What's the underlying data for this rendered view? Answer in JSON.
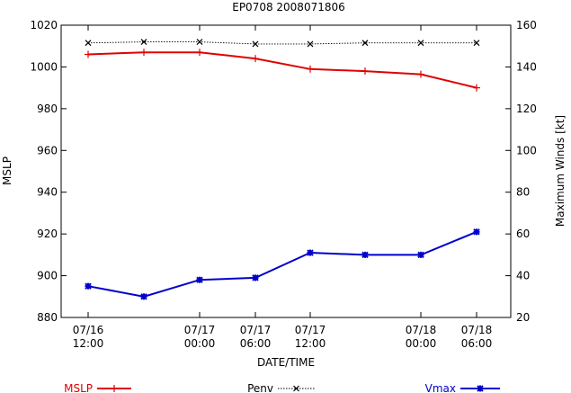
{
  "chart_data": {
    "type": "line",
    "title": "EP0708 2008071806",
    "xlabel": "DATE/TIME",
    "ylabel": "MSLP",
    "y2label": "Maximum Winds [kt]",
    "x": [
      "07/16 12:00",
      "07/16 18:00",
      "07/17 00:00",
      "07/17 06:00",
      "07/17 12:00",
      "07/17 18:00",
      "07/18 00:00",
      "07/18 06:00"
    ],
    "x_ticks": [
      {
        "index": 0,
        "line1": "07/16",
        "line2": "12:00"
      },
      {
        "index": 2,
        "line1": "07/17",
        "line2": "00:00"
      },
      {
        "index": 3,
        "line1": "07/17",
        "line2": "06:00"
      },
      {
        "index": 4,
        "line1": "07/17",
        "line2": "12:00"
      },
      {
        "index": 6,
        "line1": "07/18",
        "line2": "00:00"
      },
      {
        "index": 7,
        "line1": "07/18",
        "line2": "06:00"
      }
    ],
    "ylim": [
      880,
      1020
    ],
    "yticks": [
      880,
      900,
      920,
      940,
      960,
      980,
      1000,
      1020
    ],
    "y2lim": [
      20,
      160
    ],
    "y2ticks": [
      20,
      40,
      60,
      80,
      100,
      120,
      140,
      160
    ],
    "grid": false,
    "legend_position": "bottom",
    "series": [
      {
        "name": "MSLP",
        "axis": "left",
        "color": "#e00000",
        "marker": "plus",
        "dashed": false,
        "values": [
          1006,
          1007,
          1007,
          1004,
          999,
          998,
          996.5,
          990
        ]
      },
      {
        "name": "Penv",
        "axis": "left",
        "color": "#000000",
        "marker": "cross",
        "dashed": true,
        "values": [
          1011.5,
          1012,
          1012,
          1011,
          1011,
          1011.5,
          1011.5,
          1011.5
        ]
      },
      {
        "name": "Vmax",
        "axis": "right",
        "color": "#0000cc",
        "marker": "star",
        "dashed": false,
        "values": [
          35,
          30,
          38,
          39,
          51,
          50,
          50,
          61
        ]
      }
    ]
  }
}
